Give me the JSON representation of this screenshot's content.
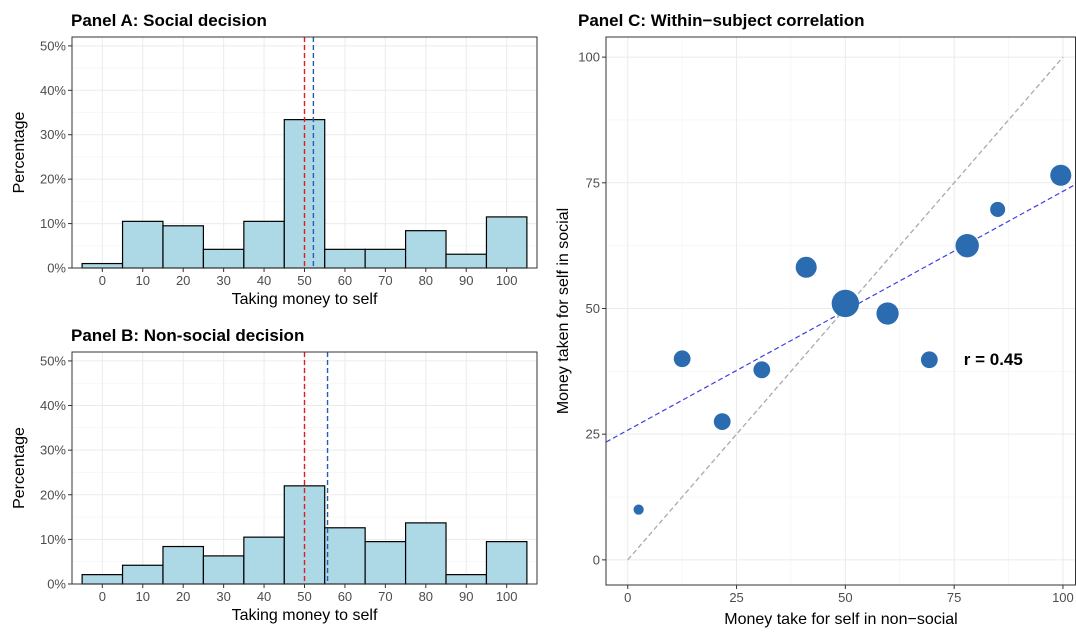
{
  "chart_data": [
    {
      "type": "bar",
      "panel": "A",
      "title": "Panel A: Social decision",
      "xlabel": "Taking money to self",
      "ylabel": "Percentage",
      "categories": [
        "0",
        "10",
        "20",
        "30",
        "40",
        "50",
        "60",
        "70",
        "80",
        "90",
        "100"
      ],
      "values": [
        1.0,
        10.5,
        9.5,
        4.2,
        10.5,
        33.4,
        4.2,
        4.2,
        8.4,
        3.1,
        11.5
      ],
      "ylim": [
        0,
        52
      ],
      "yticks": [
        "0%",
        "10%",
        "20%",
        "30%",
        "40%",
        "50%"
      ],
      "ytick_values": [
        0,
        10,
        20,
        30,
        40,
        50
      ],
      "vlines": [
        {
          "x": 50,
          "color": "#e41a1c",
          "style": "dashed"
        },
        {
          "x": 52.2,
          "color": "#1f5fb0",
          "style": "dashed"
        }
      ],
      "grid": true
    },
    {
      "type": "bar",
      "panel": "B",
      "title": "Panel B: Non-social decision",
      "xlabel": "Taking money to self",
      "ylabel": "Percentage",
      "categories": [
        "0",
        "10",
        "20",
        "30",
        "40",
        "50",
        "60",
        "70",
        "80",
        "90",
        "100"
      ],
      "values": [
        2.1,
        4.2,
        8.4,
        6.3,
        10.5,
        22.0,
        12.6,
        9.5,
        13.7,
        2.1,
        9.5
      ],
      "ylim": [
        0,
        52
      ],
      "yticks": [
        "0%",
        "10%",
        "20%",
        "30%",
        "40%",
        "50%"
      ],
      "ytick_values": [
        0,
        10,
        20,
        30,
        40,
        50
      ],
      "vlines": [
        {
          "x": 50,
          "color": "#e41a1c",
          "style": "dashed"
        },
        {
          "x": 55.7,
          "color": "#1f5fb0",
          "style": "dashed"
        }
      ],
      "grid": true
    },
    {
      "type": "scatter",
      "panel": "C",
      "title": "Panel C: Within−subject correlation",
      "xlabel": "Money take for self in non−social",
      "ylabel": "Money taken for self in social",
      "xlim": [
        -5,
        103
      ],
      "ylim": [
        -5,
        104
      ],
      "xticks": [
        0,
        25,
        50,
        75,
        100
      ],
      "yticks": [
        0,
        25,
        50,
        75,
        100
      ],
      "points": [
        {
          "x": 2.5,
          "y": 10,
          "size": 1
        },
        {
          "x": 12.5,
          "y": 40,
          "size": 4
        },
        {
          "x": 21.7,
          "y": 27.5,
          "size": 4
        },
        {
          "x": 30.8,
          "y": 37.8,
          "size": 4
        },
        {
          "x": 41,
          "y": 58.2,
          "size": 7
        },
        {
          "x": 50,
          "y": 51,
          "size": 13
        },
        {
          "x": 59.7,
          "y": 49,
          "size": 8
        },
        {
          "x": 69.3,
          "y": 39.8,
          "size": 4
        },
        {
          "x": 78,
          "y": 62.5,
          "size": 9
        },
        {
          "x": 85,
          "y": 69.7,
          "size": 3
        },
        {
          "x": 99.5,
          "y": 76.5,
          "size": 7
        }
      ],
      "point_color": "#2b6cb0",
      "identity_line": {
        "from": [
          0,
          0
        ],
        "to": [
          100,
          100
        ],
        "color": "#aaaaaa",
        "style": "dashed"
      },
      "fit_line": {
        "intercept": 25.8,
        "slope": 0.475,
        "color": "#3f3fdf",
        "style": "dashed"
      },
      "annotation": "r =  0.45",
      "annotation_pos": [
        84,
        40
      ],
      "grid": true
    }
  ]
}
